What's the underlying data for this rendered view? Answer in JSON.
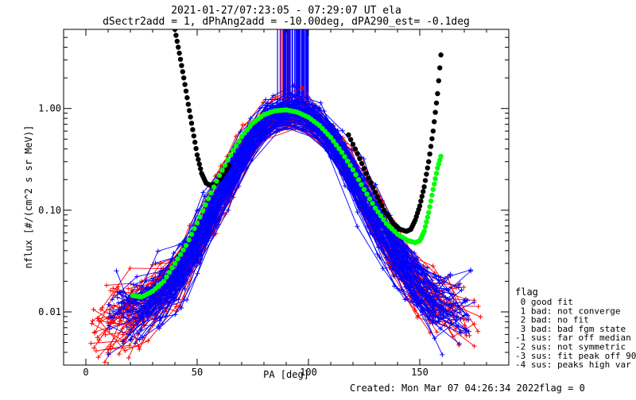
{
  "chart_data": {
    "type": "line",
    "title_line1": "2021-01-27/07:23:05 - 07:29:07 UT ela",
    "title_line2": "dSectr2add = 1, dPhAng2add = -10.00deg, dPA290_est=  -0.1deg",
    "xlabel": "PA [deg]",
    "ylabel": "nflux [#/(cm^2 s sr MeV)]",
    "xlim": [
      -10,
      190
    ],
    "ylim": [
      0.003,
      6.0
    ],
    "yscale": "log",
    "x_ticks": [
      0,
      50,
      100,
      150
    ],
    "x_tick_labels": [
      "0",
      "50",
      "100",
      "150"
    ],
    "y_ticks": [
      0.01,
      0.1,
      1.0
    ],
    "y_tick_labels": [
      "0.01",
      "0.10",
      "1.00"
    ],
    "colors": {
      "red": "#ff0000",
      "blue": "#0000ff",
      "green": "#00ff00",
      "black": "#000000"
    },
    "series": [
      {
        "kind": "fit-green",
        "x": [
          21,
          25,
          30,
          35,
          40,
          45,
          50,
          55,
          60,
          65,
          70,
          75,
          80,
          85,
          90,
          95,
          100,
          105,
          110,
          115,
          120,
          125,
          130,
          135,
          140,
          145,
          148,
          150,
          152,
          154,
          156,
          158,
          160
        ],
        "y": [
          0.0145,
          0.014,
          0.016,
          0.02,
          0.03,
          0.045,
          0.075,
          0.13,
          0.22,
          0.35,
          0.53,
          0.72,
          0.87,
          0.95,
          0.97,
          0.92,
          0.82,
          0.68,
          0.52,
          0.37,
          0.25,
          0.16,
          0.105,
          0.074,
          0.058,
          0.05,
          0.048,
          0.05,
          0.062,
          0.095,
          0.16,
          0.26,
          0.37
        ]
      },
      {
        "kind": "fit-black",
        "x": [
          40,
          42,
          44,
          46,
          48,
          50,
          52,
          54,
          56,
          58,
          60,
          62,
          65
        ],
        "y": [
          6.0,
          3.5,
          2.0,
          1.1,
          0.62,
          0.35,
          0.23,
          0.185,
          0.175,
          0.18,
          0.2,
          0.23,
          0.29
        ],
        "x2": [
          118,
          122,
          126,
          130,
          134,
          138,
          141,
          144,
          146,
          148,
          150,
          152,
          154,
          156,
          158,
          160
        ],
        "y2": [
          0.55,
          0.36,
          0.23,
          0.15,
          0.1,
          0.075,
          0.065,
          0.062,
          0.065,
          0.08,
          0.11,
          0.17,
          0.3,
          0.6,
          1.4,
          4.5
        ]
      },
      {
        "kind": "profile-shape",
        "x": [
          0,
          10,
          20,
          30,
          40,
          50,
          60,
          70,
          80,
          90,
          100,
          110,
          120,
          130,
          140,
          150,
          160,
          170,
          180
        ],
        "y": [
          0.0075,
          0.0085,
          0.01,
          0.013,
          0.02,
          0.045,
          0.13,
          0.35,
          0.72,
          0.97,
          0.87,
          0.52,
          0.22,
          0.085,
          0.035,
          0.017,
          0.011,
          0.009,
          0.008
        ]
      }
    ],
    "legend": {
      "title": "flag",
      "entries": [
        " 0 good fit",
        " 1 bad: not converge",
        " 2 bad: no fit",
        " 3 bad: bad fgm state",
        "-1 sus: far off median",
        "-2 sus: not symmetric",
        "-3 sus: fit peak off 90",
        "-4 sus: peaks high var"
      ],
      "placement": "right"
    },
    "footer_created": "Created: Mon Mar 07 04:26:34 2022",
    "footer_flag": "flag = 0"
  }
}
